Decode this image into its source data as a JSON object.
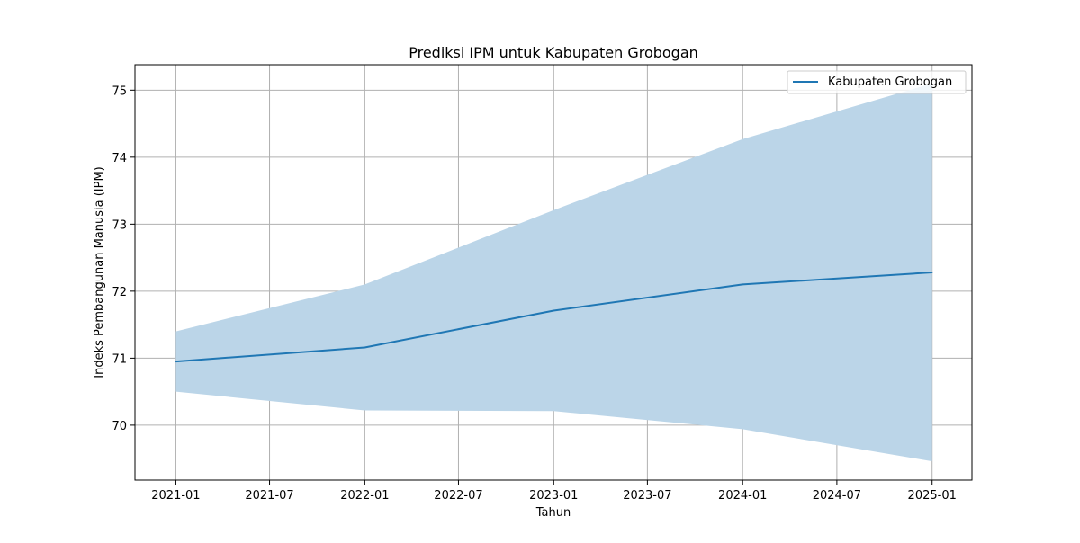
{
  "chart_data": {
    "type": "line",
    "title": "Prediksi IPM untuk Kabupaten Grobogan",
    "xlabel": "Tahun",
    "ylabel": "Indeks Pembangunan Manusia (IPM)",
    "x": [
      "2021-01-01",
      "2022-01-01",
      "2023-01-01",
      "2024-01-01",
      "2025-01-01"
    ],
    "series": [
      {
        "name": "Kabupaten Grobogan",
        "values": [
          70.95,
          71.16,
          71.71,
          72.1,
          72.28
        ],
        "lower": [
          70.5,
          70.22,
          70.21,
          69.94,
          69.46
        ],
        "upper": [
          71.4,
          72.1,
          73.21,
          74.27,
          75.1
        ],
        "color": "#1f77b4",
        "band_color": "#bbd5e8"
      }
    ],
    "xlim": [
      "2020-10-14",
      "2025-03-19"
    ],
    "ylim": [
      69.18,
      75.38
    ],
    "xticks": [
      {
        "date": "2021-01-01",
        "label": "2021-01"
      },
      {
        "date": "2021-07-01",
        "label": "2021-07"
      },
      {
        "date": "2022-01-01",
        "label": "2022-01"
      },
      {
        "date": "2022-07-01",
        "label": "2022-07"
      },
      {
        "date": "2023-01-01",
        "label": "2023-01"
      },
      {
        "date": "2023-07-01",
        "label": "2023-07"
      },
      {
        "date": "2024-01-01",
        "label": "2024-01"
      },
      {
        "date": "2024-07-01",
        "label": "2024-07"
      },
      {
        "date": "2025-01-01",
        "label": "2025-01"
      }
    ],
    "yticks": [
      {
        "value": 70,
        "label": "70"
      },
      {
        "value": 71,
        "label": "71"
      },
      {
        "value": 72,
        "label": "72"
      },
      {
        "value": 73,
        "label": "73"
      },
      {
        "value": 74,
        "label": "74"
      },
      {
        "value": 75,
        "label": "75"
      }
    ],
    "grid": true,
    "legend_position": "top-right"
  }
}
